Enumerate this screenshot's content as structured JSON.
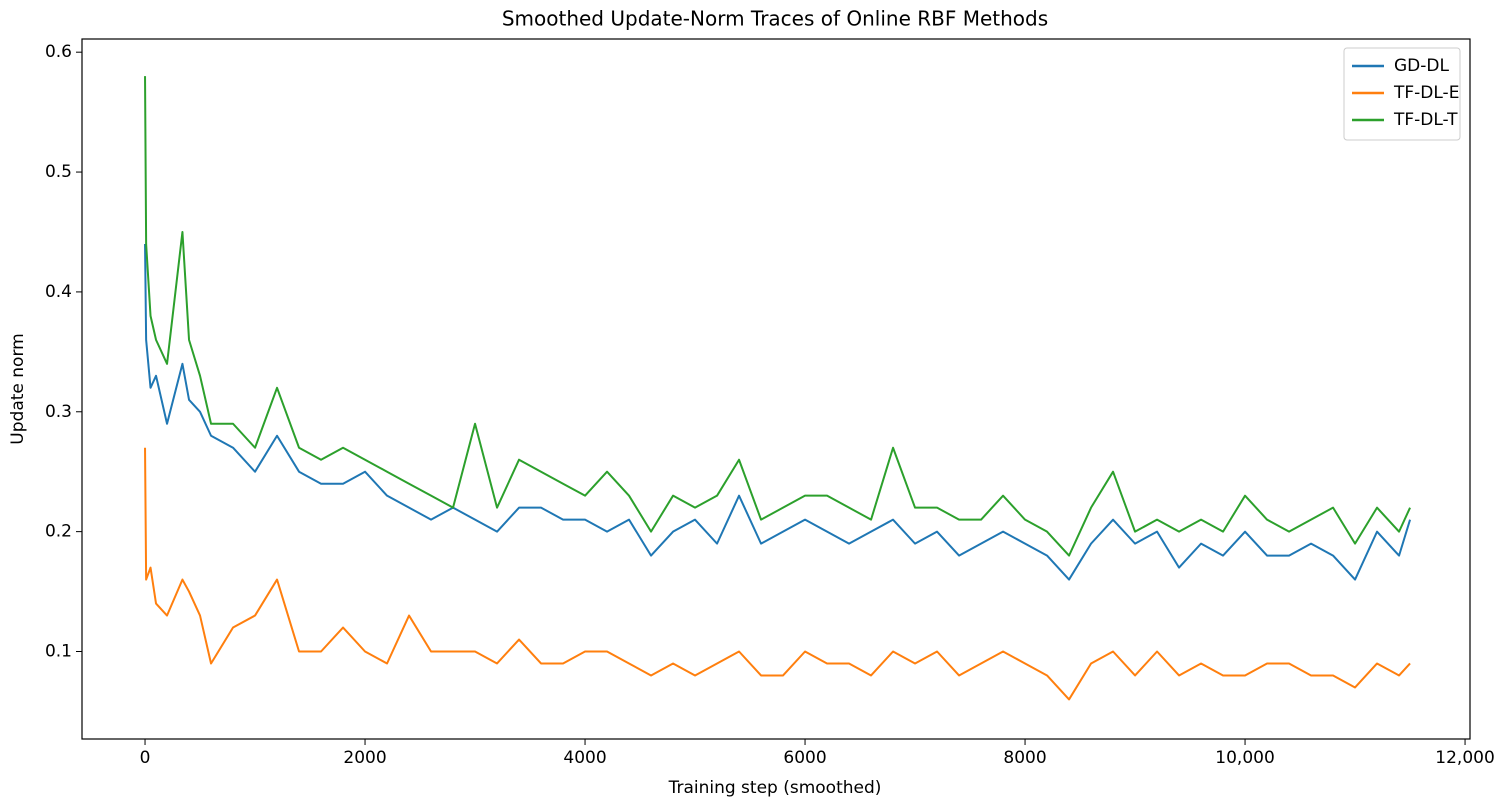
{
  "chart_data": {
    "type": "line",
    "title": "Smoothed Update-Norm Traces of Online RBF Methods",
    "xlabel": "Training step (smoothed)",
    "ylabel": "Update norm",
    "x": [
      0,
      10,
      50,
      100,
      200,
      340,
      400,
      500,
      600,
      800,
      1000,
      1200,
      1400,
      1600,
      1800,
      2000,
      2200,
      2400,
      2600,
      2800,
      3000,
      3200,
      3400,
      3600,
      3800,
      4000,
      4200,
      4400,
      4600,
      4800,
      5000,
      5200,
      5400,
      5600,
      5800,
      6000,
      6200,
      6400,
      6600,
      6800,
      7000,
      7200,
      7400,
      7600,
      7800,
      8000,
      8200,
      8400,
      8600,
      8800,
      9000,
      9200,
      9400,
      9600,
      9800,
      10000,
      10200,
      10400,
      10600,
      10800,
      11000,
      11200,
      11400,
      11500
    ],
    "series": [
      {
        "name": "GD-DL",
        "color": "#1f77b4",
        "values": [
          0.44,
          0.36,
          0.32,
          0.33,
          0.29,
          0.34,
          0.31,
          0.3,
          0.28,
          0.27,
          0.25,
          0.28,
          0.25,
          0.24,
          0.24,
          0.25,
          0.23,
          0.22,
          0.21,
          0.22,
          0.21,
          0.2,
          0.22,
          0.22,
          0.21,
          0.21,
          0.2,
          0.21,
          0.18,
          0.2,
          0.21,
          0.19,
          0.23,
          0.19,
          0.2,
          0.21,
          0.2,
          0.19,
          0.2,
          0.21,
          0.19,
          0.2,
          0.18,
          0.19,
          0.2,
          0.19,
          0.18,
          0.16,
          0.19,
          0.21,
          0.19,
          0.2,
          0.17,
          0.19,
          0.18,
          0.2,
          0.18,
          0.18,
          0.19,
          0.18,
          0.16,
          0.2,
          0.18,
          0.21
        ]
      },
      {
        "name": "TF-DL-E",
        "color": "#ff7f0e",
        "values": [
          0.27,
          0.16,
          0.17,
          0.14,
          0.13,
          0.16,
          0.15,
          0.13,
          0.09,
          0.12,
          0.13,
          0.16,
          0.1,
          0.1,
          0.12,
          0.1,
          0.09,
          0.13,
          0.1,
          0.1,
          0.1,
          0.09,
          0.11,
          0.09,
          0.09,
          0.1,
          0.1,
          0.09,
          0.08,
          0.09,
          0.08,
          0.09,
          0.1,
          0.08,
          0.08,
          0.1,
          0.09,
          0.09,
          0.08,
          0.1,
          0.09,
          0.1,
          0.08,
          0.09,
          0.1,
          0.09,
          0.08,
          0.06,
          0.09,
          0.1,
          0.08,
          0.1,
          0.08,
          0.09,
          0.08,
          0.08,
          0.09,
          0.09,
          0.08,
          0.08,
          0.07,
          0.09,
          0.08,
          0.09
        ]
      },
      {
        "name": "TF-DL-T",
        "color": "#2ca02c",
        "values": [
          0.58,
          0.44,
          0.38,
          0.36,
          0.34,
          0.45,
          0.36,
          0.33,
          0.29,
          0.29,
          0.27,
          0.32,
          0.27,
          0.26,
          0.27,
          0.26,
          0.25,
          0.24,
          0.23,
          0.22,
          0.29,
          0.22,
          0.26,
          0.25,
          0.24,
          0.23,
          0.25,
          0.23,
          0.2,
          0.23,
          0.22,
          0.23,
          0.26,
          0.21,
          0.22,
          0.23,
          0.23,
          0.22,
          0.21,
          0.27,
          0.22,
          0.22,
          0.21,
          0.21,
          0.23,
          0.21,
          0.2,
          0.18,
          0.22,
          0.25,
          0.2,
          0.21,
          0.2,
          0.21,
          0.2,
          0.23,
          0.21,
          0.2,
          0.21,
          0.22,
          0.19,
          0.22,
          0.2,
          0.22
        ]
      }
    ],
    "xlim": [
      -573,
      12045
    ],
    "ylim": [
      0.027,
      0.611
    ],
    "xticks": [
      0,
      2000,
      4000,
      6000,
      8000,
      {
        "value": 10000,
        "label": "10,000"
      },
      {
        "value": 12000,
        "label": "12,000"
      }
    ],
    "yticks": [
      0.1,
      0.2,
      0.3,
      0.4,
      0.5,
      0.6
    ],
    "legend": "upper right",
    "grid": false
  }
}
